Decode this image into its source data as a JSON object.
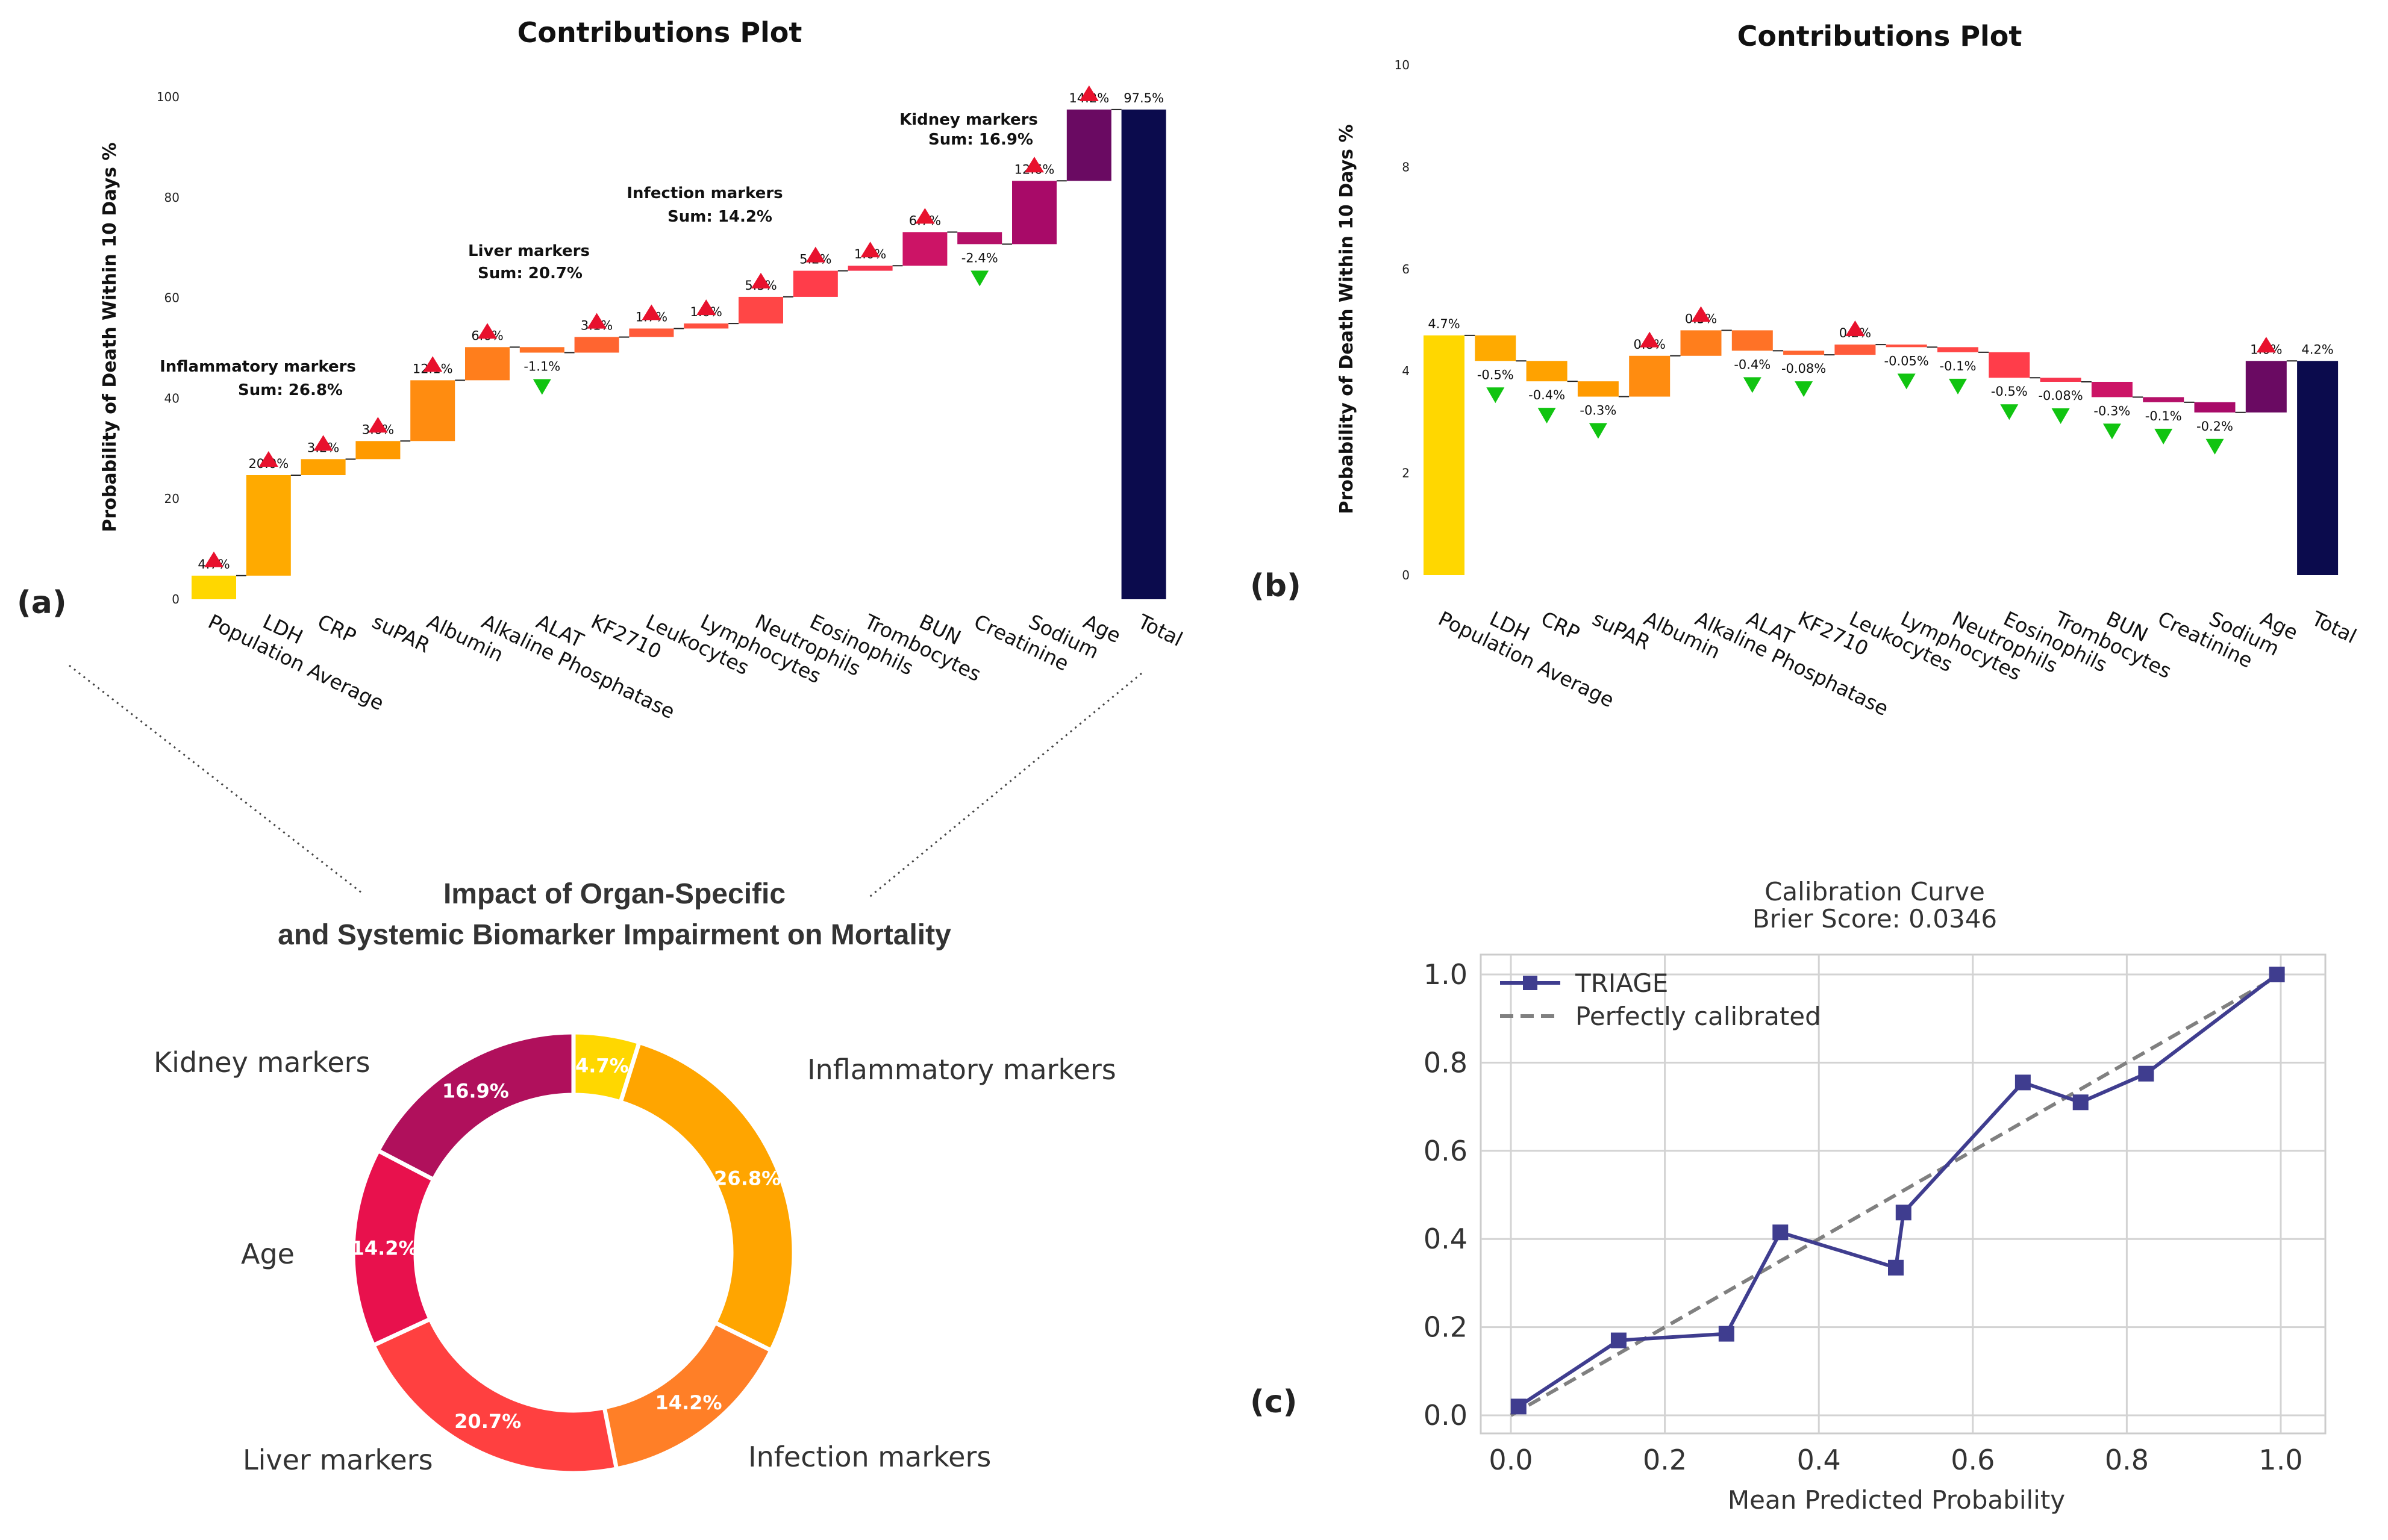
{
  "colors": {
    "up_marker": "#e8112d",
    "down_marker": "#11c411",
    "total_bar": "#0b0b4d",
    "triage_line": "#3f3d8f",
    "perfect_line": "#808080"
  },
  "panel_labels": {
    "a": "(a)",
    "b": "(b)",
    "c": "(c)"
  },
  "chart_data": [
    {
      "id": "a",
      "type": "waterfall",
      "title": "Contributions Plot",
      "ylabel": "Probability of Death Within 10 Days %",
      "ylim": [
        0,
        100
      ],
      "yticks": [
        "0",
        "20",
        "40",
        "60",
        "80",
        "100"
      ],
      "categories": [
        "Population Average",
        "LDH",
        "CRP",
        "suPAR",
        "Albumin",
        "Alkaline Phosphatase",
        "ALAT",
        "KF2710",
        "Leukocytes",
        "Lymphocytes",
        "Neutrophils",
        "Eosinophils",
        "Trombocytes",
        "BUN",
        "Creatinine",
        "Sodium",
        "Age",
        "Total"
      ],
      "starts": [
        0,
        4.7,
        24.7,
        27.9,
        31.5,
        43.6,
        50.2,
        49.1,
        52.2,
        53.9,
        54.9,
        60.2,
        65.4,
        66.4,
        73.1,
        70.7,
        83.3,
        0
      ],
      "ends": [
        4.7,
        24.7,
        27.9,
        31.5,
        43.6,
        50.2,
        49.1,
        52.2,
        53.9,
        54.9,
        60.2,
        65.4,
        66.4,
        73.1,
        70.7,
        83.3,
        97.5,
        97.5
      ],
      "labels": [
        "4.7%",
        "20.0%",
        "3.2%",
        "3.6%",
        "12.1%",
        "6.6%",
        "-1.1%",
        "3.1%",
        "1.7%",
        "1.0%",
        "5.3%",
        "5.2%",
        "1.0%",
        "6.7%",
        "-2.4%",
        "12.6%",
        "14.2%",
        "97.5%"
      ],
      "colors": [
        "#ffd700",
        "#ffaa00",
        "#ffa200",
        "#ff9a00",
        "#ff8c10",
        "#ff7e1c",
        "#ff7226",
        "#ff6530",
        "#ff5a3a",
        "#ff5040",
        "#ff4646",
        "#ff3d4a",
        "#f7354e",
        "#cc1466",
        "#b51068",
        "#a80a68",
        "#6a0a62",
        "#0b0b4d"
      ],
      "markers": [
        "up",
        "up",
        "up",
        "up",
        "up",
        "up",
        "down",
        "up",
        "up",
        "up",
        "up",
        "up",
        "up",
        "up",
        "down",
        "up",
        "up",
        "none"
      ],
      "groups": [
        {
          "name": "Inflammatory markers",
          "sum": "Sum: 26.8%"
        },
        {
          "name": "Liver markers",
          "sum": "Sum: 20.7%"
        },
        {
          "name": "Infection markers",
          "sum": "Sum: 14.2%"
        },
        {
          "name": "Kidney markers",
          "sum": "Sum: 16.9%"
        }
      ]
    },
    {
      "id": "b",
      "type": "waterfall",
      "title": "Contributions Plot",
      "ylabel": "Probability of Death Within 10 Days %",
      "ylim": [
        0,
        10
      ],
      "yticks": [
        "0",
        "2",
        "4",
        "6",
        "8",
        "10"
      ],
      "categories": [
        "Population Average",
        "LDH",
        "CRP",
        "suPAR",
        "Albumin",
        "Alkaline Phosphatase",
        "ALAT",
        "KF2710",
        "Leukocytes",
        "Lymphocytes",
        "Neutrophils",
        "Eosinophils",
        "Trombocytes",
        "BUN",
        "Creatinine",
        "Sodium",
        "Age",
        "Total"
      ],
      "starts": [
        0,
        4.7,
        4.2,
        3.8,
        3.5,
        4.3,
        4.8,
        4.4,
        4.32,
        4.52,
        4.47,
        4.37,
        3.87,
        3.79,
        3.49,
        3.39,
        3.19,
        0
      ],
      "ends": [
        4.7,
        4.2,
        3.8,
        3.5,
        4.3,
        4.8,
        4.4,
        4.32,
        4.52,
        4.47,
        4.37,
        3.87,
        3.79,
        3.49,
        3.39,
        3.19,
        4.2,
        4.2
      ],
      "labels": [
        "4.7%",
        "-0.5%",
        "-0.4%",
        "-0.3%",
        "0.8%",
        "0.5%",
        "-0.4%",
        "-0.08%",
        "0.2%",
        "-0.05%",
        "-0.1%",
        "-0.5%",
        "-0.08%",
        "-0.3%",
        "-0.1%",
        "-0.2%",
        "1.0%",
        "4.2%"
      ],
      "colors": [
        "#ffd700",
        "#ffaa00",
        "#ffa200",
        "#ff9a00",
        "#ff8c10",
        "#ff7e1c",
        "#ff7226",
        "#ff6530",
        "#ff5a3a",
        "#ff5040",
        "#ff4646",
        "#ff3d4a",
        "#f7354e",
        "#cc1466",
        "#b51068",
        "#a80a68",
        "#6a0a62",
        "#0b0b4d"
      ],
      "markers": [
        "none",
        "down",
        "down",
        "down",
        "up",
        "up",
        "down",
        "down",
        "up",
        "down",
        "down",
        "down",
        "down",
        "down",
        "down",
        "down",
        "up",
        "none"
      ]
    },
    {
      "id": "donut",
      "type": "pie",
      "title_line1": "Impact of Organ-Specific",
      "title_line2": "and Systemic Biomarker Impairment on Mortality",
      "slices": [
        {
          "name": "",
          "value": 4.7,
          "label": "4.7%",
          "color": "#ffd700"
        },
        {
          "name": "Inflammatory markers",
          "value": 26.8,
          "label": "26.8%",
          "color": "#ffa500"
        },
        {
          "name": "Infection markers",
          "value": 14.2,
          "label": "14.2%",
          "color": "#ff7f27"
        },
        {
          "name": "Liver markers",
          "value": 20.7,
          "label": "20.7%",
          "color": "#ff4040"
        },
        {
          "name": "Age",
          "value": 14.2,
          "label": "14.2%",
          "color": "#e8114d"
        },
        {
          "name": "Kidney markers",
          "value": 16.9,
          "label": "16.9%",
          "color": "#b0105c"
        }
      ]
    },
    {
      "id": "c",
      "type": "line",
      "title": "Calibration Curve",
      "subtitle": "Brier Score: 0.0346",
      "xlabel": "Mean Predicted Probability",
      "ylabel": "",
      "xlim": [
        0,
        1
      ],
      "ylim": [
        0,
        1
      ],
      "xticks": [
        "0.0",
        "0.2",
        "0.4",
        "0.6",
        "0.8",
        "1.0"
      ],
      "yticks": [
        "0.0",
        "0.2",
        "0.4",
        "0.6",
        "0.8",
        "1.0"
      ],
      "series": [
        {
          "name": "TRIAGE",
          "x": [
            0.01,
            0.14,
            0.28,
            0.35,
            0.5,
            0.51,
            0.665,
            0.74,
            0.825,
            0.995
          ],
          "y": [
            0.02,
            0.17,
            0.185,
            0.415,
            0.335,
            0.46,
            0.755,
            0.71,
            0.775,
            1.0
          ]
        },
        {
          "name": "Perfectly calibrated",
          "x": [
            0,
            1
          ],
          "y": [
            0,
            1
          ]
        }
      ]
    }
  ]
}
